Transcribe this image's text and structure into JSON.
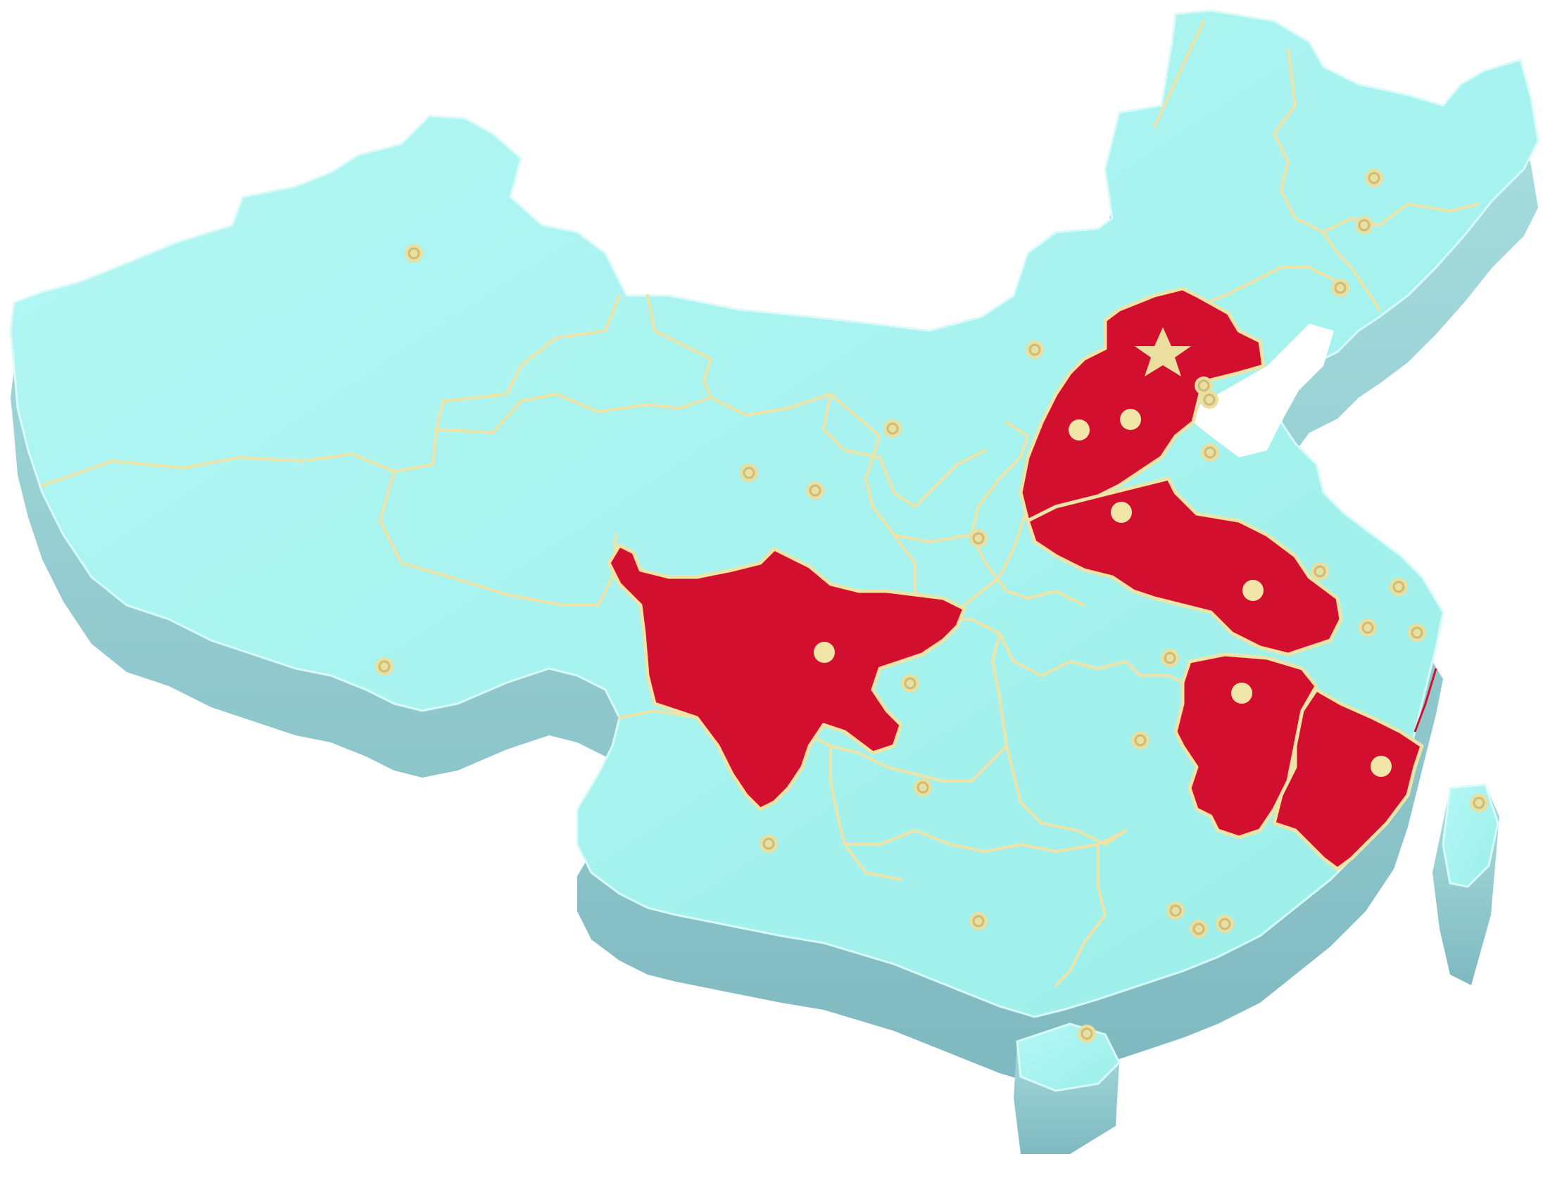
{
  "map": {
    "colors": {
      "base": "#a6f3ef",
      "base_side": "#8ec9cc",
      "base_shadow": "#6faab0",
      "highlight": "#d20f2e",
      "border": "#efe3a6",
      "city": "#eadf9e",
      "city_on_highlight": "#f1e6a8"
    },
    "highlighted_region_count": 5,
    "markers": {
      "capital_icon": "star-icon",
      "city_icon": "circle-dot-icon"
    }
  }
}
